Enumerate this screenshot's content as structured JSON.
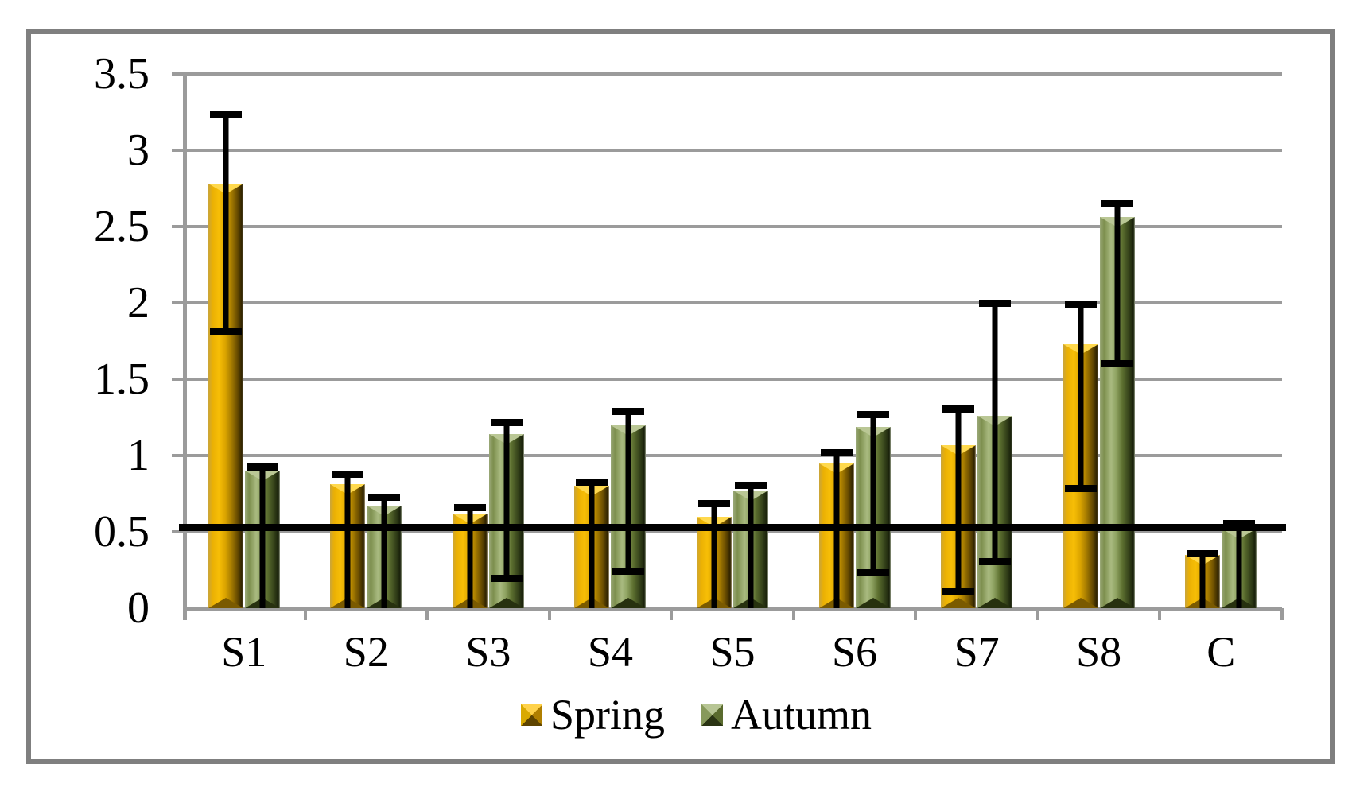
{
  "figure": {
    "background_color": "#ffffff",
    "border_color": "#7f7f7f",
    "gridline_color": "#9b9b9b",
    "reference_line_color": "#000000",
    "spring_color": "#e8a800",
    "autumn_color": "#7a8b4a"
  },
  "legend": {
    "items": [
      {
        "label": "Spring",
        "marker": "spring-square-icon"
      },
      {
        "label": "Autumn",
        "marker": "autumn-square-icon"
      }
    ]
  },
  "chart_data": {
    "type": "bar",
    "title": "",
    "xlabel": "",
    "ylabel": "",
    "categories": [
      "S1",
      "S2",
      "S3",
      "S4",
      "S5",
      "S6",
      "S7",
      "S8",
      "C"
    ],
    "series": [
      {
        "name": "Spring",
        "values": [
          2.78,
          0.81,
          0.62,
          0.8,
          0.6,
          0.95,
          1.07,
          1.73,
          0.35
        ],
        "error_high": [
          3.26,
          0.9,
          0.68,
          0.85,
          0.71,
          1.04,
          1.33,
          2.01,
          0.38
        ],
        "error_low": [
          1.79,
          0,
          0,
          0,
          0,
          0,
          0.09,
          0.76,
          0
        ]
      },
      {
        "name": "Autumn",
        "values": [
          0.9,
          0.67,
          1.14,
          1.2,
          0.77,
          1.19,
          1.26,
          2.56,
          0.52
        ],
        "error_high": [
          0.95,
          0.75,
          1.24,
          1.31,
          0.83,
          1.29,
          2.02,
          2.67,
          0.58
        ],
        "error_low": [
          0,
          0,
          0.17,
          0.22,
          0,
          0.21,
          0.28,
          1.58,
          0
        ]
      }
    ],
    "ylim": [
      0,
      3.5
    ],
    "y_tick_labels": [
      "0",
      "0.5",
      "1",
      "1.5",
      "2",
      "2.5",
      "3",
      "3.5"
    ],
    "y_tick_values": [
      0,
      0.5,
      1,
      1.5,
      2,
      2.5,
      3,
      3.5
    ],
    "reference_line": 0.53,
    "grid": true,
    "legend_position": "bottom"
  }
}
